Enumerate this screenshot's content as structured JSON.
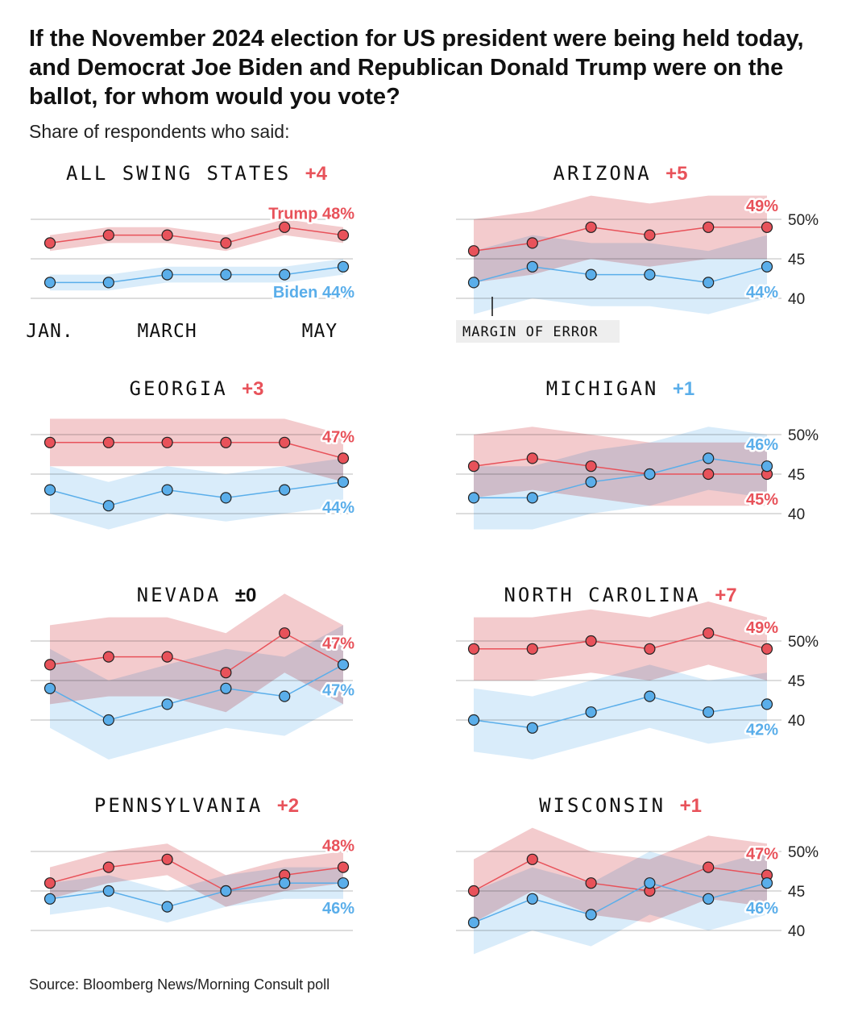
{
  "title": "If the November 2024 election for US president were being held today, and Democrat Joe Biden and Republican Donald Trump were on the ballot, for whom would you vote?",
  "subtitle": "Share of respondents who said:",
  "source": "Source: Bloomberg News/Morning Consult poll",
  "colors": {
    "trump": "#e8525a",
    "trump_band": "#f2c6c8",
    "biden": "#5aaeea",
    "biden_band": "#cde6f8",
    "overlap": "#d3b9d0",
    "gridline": "#bbbbbb"
  },
  "margin_of_error_label": "MARGIN OF ERROR",
  "chart_data": [
    {
      "type": "line",
      "title": "ALL SWING STATES",
      "margin_label": "+4",
      "margin_color": "trump",
      "y_ticks": [],
      "x_ticks": [
        "JAN.",
        "MARCH",
        "MAY"
      ],
      "ylim": [
        38,
        52
      ],
      "series": [
        {
          "name": "Trump",
          "end_label": "Trump 48%",
          "values": [
            47,
            48,
            48,
            47,
            49,
            48
          ],
          "band_low": [
            46,
            47,
            47,
            46,
            48,
            47
          ],
          "band_high": [
            48,
            49,
            49,
            48,
            50,
            49
          ]
        },
        {
          "name": "Biden",
          "end_label": "Biden 44%",
          "values": [
            42,
            42,
            43,
            43,
            43,
            44
          ],
          "band_low": [
            41,
            41,
            42,
            42,
            42,
            43
          ],
          "band_high": [
            43,
            43,
            44,
            44,
            44,
            45
          ]
        }
      ]
    },
    {
      "type": "line",
      "title": "ARIZONA",
      "margin_label": "+5",
      "margin_color": "trump",
      "y_ticks": [
        "50%",
        "45",
        "40"
      ],
      "ylim": [
        38,
        52
      ],
      "series": [
        {
          "name": "Trump",
          "end_label": "49%",
          "values": [
            46,
            47,
            49,
            48,
            49,
            49
          ],
          "band_low": [
            42,
            43,
            45,
            44,
            45,
            45
          ],
          "band_high": [
            50,
            51,
            53,
            52,
            53,
            53
          ]
        },
        {
          "name": "Biden",
          "end_label": "44%",
          "values": [
            42,
            44,
            43,
            43,
            42,
            44
          ],
          "band_low": [
            38,
            40,
            39,
            39,
            38,
            40
          ],
          "band_high": [
            46,
            48,
            47,
            47,
            46,
            48
          ]
        }
      ]
    },
    {
      "type": "line",
      "title": "GEORGIA",
      "margin_label": "+3",
      "margin_color": "trump",
      "y_ticks": [],
      "ylim": [
        38,
        52
      ],
      "series": [
        {
          "name": "Trump",
          "end_label": "47%",
          "values": [
            49,
            49,
            49,
            49,
            49,
            47
          ],
          "band_low": [
            46,
            46,
            46,
            46,
            46,
            44
          ],
          "band_high": [
            52,
            52,
            52,
            52,
            52,
            50
          ]
        },
        {
          "name": "Biden",
          "end_label": "44%",
          "values": [
            43,
            41,
            43,
            42,
            43,
            44
          ],
          "band_low": [
            40,
            38,
            40,
            39,
            40,
            41
          ],
          "band_high": [
            46,
            44,
            46,
            45,
            46,
            47
          ]
        }
      ]
    },
    {
      "type": "line",
      "title": "MICHIGAN",
      "margin_label": "+1",
      "margin_color": "biden",
      "y_ticks": [
        "50%",
        "45",
        "40"
      ],
      "ylim": [
        38,
        52
      ],
      "series": [
        {
          "name": "Trump",
          "end_label": "45%",
          "values": [
            46,
            47,
            46,
            45,
            45,
            45
          ],
          "band_low": [
            42,
            43,
            42,
            41,
            41,
            41
          ],
          "band_high": [
            50,
            51,
            50,
            49,
            49,
            49
          ]
        },
        {
          "name": "Biden",
          "end_label": "46%",
          "values": [
            42,
            42,
            44,
            45,
            47,
            46
          ],
          "band_low": [
            38,
            38,
            40,
            41,
            43,
            42
          ],
          "band_high": [
            46,
            46,
            48,
            49,
            51,
            50
          ]
        }
      ]
    },
    {
      "type": "line",
      "title": "NEVADA",
      "margin_label": "±0",
      "margin_color": "neutral",
      "y_ticks": [],
      "ylim": [
        38,
        52
      ],
      "series": [
        {
          "name": "Trump",
          "end_label": "47%",
          "values": [
            47,
            48,
            48,
            46,
            51,
            47
          ],
          "band_low": [
            42,
            43,
            43,
            41,
            46,
            42
          ],
          "band_high": [
            52,
            53,
            53,
            51,
            56,
            52
          ]
        },
        {
          "name": "Biden",
          "end_label": "47%",
          "values": [
            44,
            40,
            42,
            44,
            43,
            47
          ],
          "band_low": [
            39,
            35,
            37,
            39,
            38,
            42
          ],
          "band_high": [
            49,
            45,
            47,
            49,
            48,
            52
          ]
        }
      ]
    },
    {
      "type": "line",
      "title": "NORTH CAROLINA",
      "margin_label": "+7",
      "margin_color": "trump",
      "y_ticks": [
        "50%",
        "45",
        "40"
      ],
      "ylim": [
        38,
        52
      ],
      "series": [
        {
          "name": "Trump",
          "end_label": "49%",
          "values": [
            49,
            49,
            50,
            49,
            51,
            49
          ],
          "band_low": [
            45,
            45,
            46,
            45,
            47,
            45
          ],
          "band_high": [
            53,
            53,
            54,
            53,
            55,
            53
          ]
        },
        {
          "name": "Biden",
          "end_label": "42%",
          "values": [
            40,
            39,
            41,
            43,
            41,
            42
          ],
          "band_low": [
            36,
            35,
            37,
            39,
            37,
            38
          ],
          "band_high": [
            44,
            43,
            45,
            47,
            45,
            46
          ]
        }
      ]
    },
    {
      "type": "line",
      "title": "PENNSYLVANIA",
      "margin_label": "+2",
      "margin_color": "trump",
      "y_ticks": [],
      "ylim": [
        38,
        52
      ],
      "series": [
        {
          "name": "Trump",
          "end_label": "48%",
          "values": [
            46,
            48,
            49,
            45,
            47,
            48
          ],
          "band_low": [
            44,
            46,
            47,
            43,
            45,
            46
          ],
          "band_high": [
            48,
            50,
            51,
            47,
            49,
            50
          ]
        },
        {
          "name": "Biden",
          "end_label": "46%",
          "values": [
            44,
            45,
            43,
            45,
            46,
            46
          ],
          "band_low": [
            42,
            43,
            41,
            43,
            44,
            44
          ],
          "band_high": [
            46,
            47,
            45,
            47,
            48,
            48
          ]
        }
      ]
    },
    {
      "type": "line",
      "title": "WISCONSIN",
      "margin_label": "+1",
      "margin_color": "trump",
      "y_ticks": [
        "50%",
        "45",
        "40"
      ],
      "ylim": [
        38,
        52
      ],
      "series": [
        {
          "name": "Trump",
          "end_label": "47%",
          "values": [
            45,
            49,
            46,
            45,
            48,
            47
          ],
          "band_low": [
            41,
            45,
            42,
            41,
            44,
            43
          ],
          "band_high": [
            49,
            53,
            50,
            49,
            52,
            51
          ]
        },
        {
          "name": "Biden",
          "end_label": "46%",
          "values": [
            41,
            44,
            42,
            46,
            44,
            46
          ],
          "band_low": [
            37,
            40,
            38,
            42,
            40,
            42
          ],
          "band_high": [
            45,
            48,
            46,
            50,
            48,
            50
          ]
        }
      ]
    }
  ]
}
